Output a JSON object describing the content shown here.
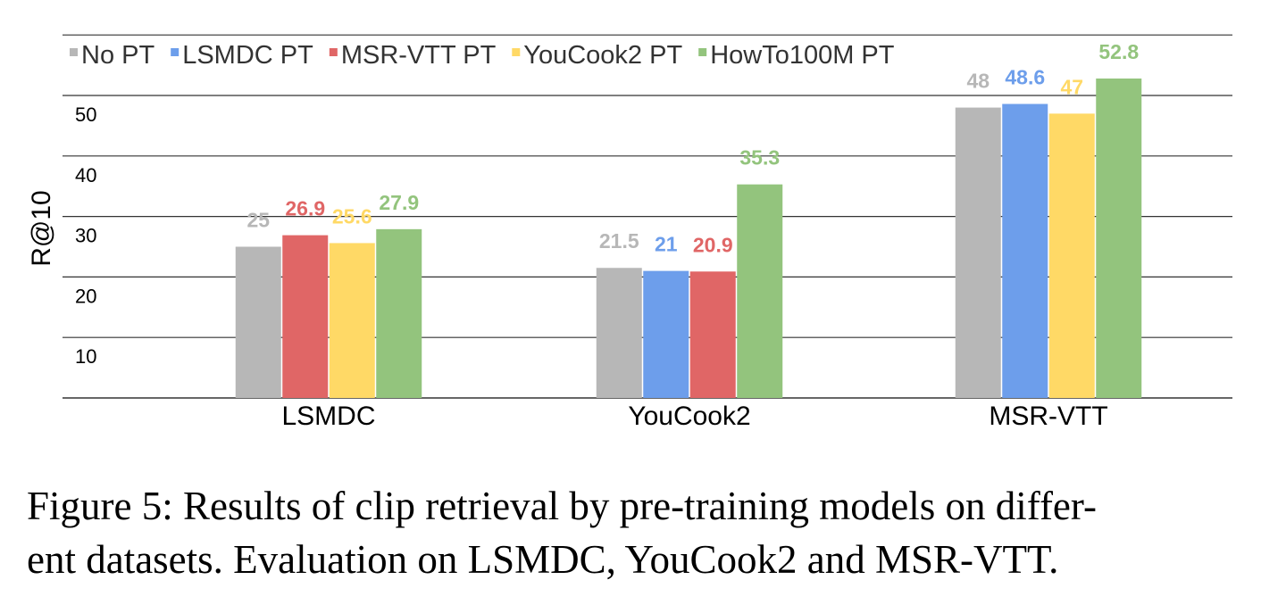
{
  "chart_data": {
    "type": "bar",
    "title": "",
    "xlabel": "",
    "ylabel": "R@10",
    "ylim": [
      0,
      55
    ],
    "yticks": [
      10,
      20,
      30,
      40,
      50
    ],
    "grid": true,
    "legend_position": "top-left",
    "categories": [
      "LSMDC",
      "YouCook2",
      "MSR-VTT"
    ],
    "series": [
      {
        "name": "No PT",
        "color": "#b7b7b7",
        "values": [
          25,
          21.5,
          48
        ],
        "labels": [
          "25",
          "21.5",
          "48"
        ]
      },
      {
        "name": "LSMDC PT",
        "color": "#6d9eeb",
        "values": [
          null,
          21,
          48.6
        ],
        "labels": [
          "",
          "21",
          "48.6"
        ]
      },
      {
        "name": "MSR-VTT PT",
        "color": "#e06666",
        "values": [
          26.9,
          20.9,
          null
        ],
        "labels": [
          "26.9",
          "20.9",
          ""
        ]
      },
      {
        "name": "YouCook2 PT",
        "color": "#ffd966",
        "values": [
          25.6,
          null,
          47
        ],
        "labels": [
          "25.6",
          "",
          "47"
        ]
      },
      {
        "name": "HowTo100M PT",
        "color": "#93c47d",
        "values": [
          27.9,
          35.3,
          52.8
        ],
        "labels": [
          "27.9",
          "35.3",
          "52.8"
        ]
      }
    ]
  },
  "caption": {
    "line1": "Figure 5: Results of clip retrieval by pre-training models on differ-",
    "line2": "ent datasets. Evaluation on LSMDC, YouCook2 and MSR-VTT."
  }
}
